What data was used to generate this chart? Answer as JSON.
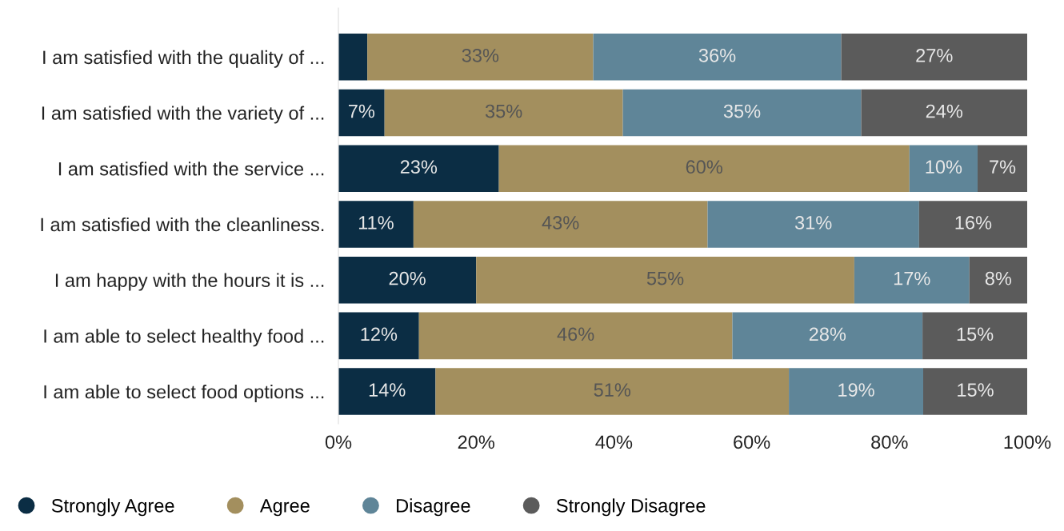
{
  "chart_data": {
    "type": "bar",
    "orientation": "horizontal",
    "stacked": true,
    "categories": [
      "I am satisfied with the quality of ...",
      "I am satisfied with the variety of ...",
      "I am satisfied with the service ...",
      "I am satisfied with the cleanliness.",
      "I am happy with the hours it is ...",
      "I am able to select healthy food ...",
      "I am able to select food options ..."
    ],
    "series": [
      {
        "name": "Strongly Agree",
        "color": "#0b2d44",
        "values": [
          4.2,
          6.7,
          23.3,
          10.9,
          20.0,
          11.7,
          14.1
        ],
        "value_labels": [
          null,
          "7%",
          "23%",
          "11%",
          "20%",
          "12%",
          "14%"
        ]
      },
      {
        "name": "Agree",
        "color": "#a38f5e",
        "values": [
          32.8,
          34.6,
          59.6,
          42.7,
          54.9,
          45.5,
          51.3
        ],
        "value_labels": [
          "33%",
          "35%",
          "60%",
          "43%",
          "55%",
          "46%",
          "51%"
        ]
      },
      {
        "name": "Disagree",
        "color": "#5f8598",
        "values": [
          36.0,
          34.6,
          9.9,
          30.7,
          16.7,
          27.6,
          19.5
        ],
        "value_labels": [
          "36%",
          "35%",
          "10%",
          "31%",
          "17%",
          "28%",
          "19%"
        ]
      },
      {
        "name": "Strongly Disagree",
        "color": "#5b5b5b",
        "values": [
          27.0,
          24.1,
          7.2,
          15.7,
          8.4,
          15.2,
          15.1
        ],
        "value_labels": [
          "27%",
          "24%",
          "7%",
          "16%",
          "8%",
          "15%",
          "15%"
        ]
      }
    ],
    "xlim": [
      0,
      100
    ],
    "xticks": [
      {
        "value": 0,
        "label": "0%"
      },
      {
        "value": 20,
        "label": "20%"
      },
      {
        "value": 40,
        "label": "40%"
      },
      {
        "value": 60,
        "label": "60%"
      },
      {
        "value": 80,
        "label": "80%"
      },
      {
        "value": 100,
        "label": "100%"
      }
    ],
    "grid": false,
    "legend": "bottom",
    "marker": "circle"
  }
}
